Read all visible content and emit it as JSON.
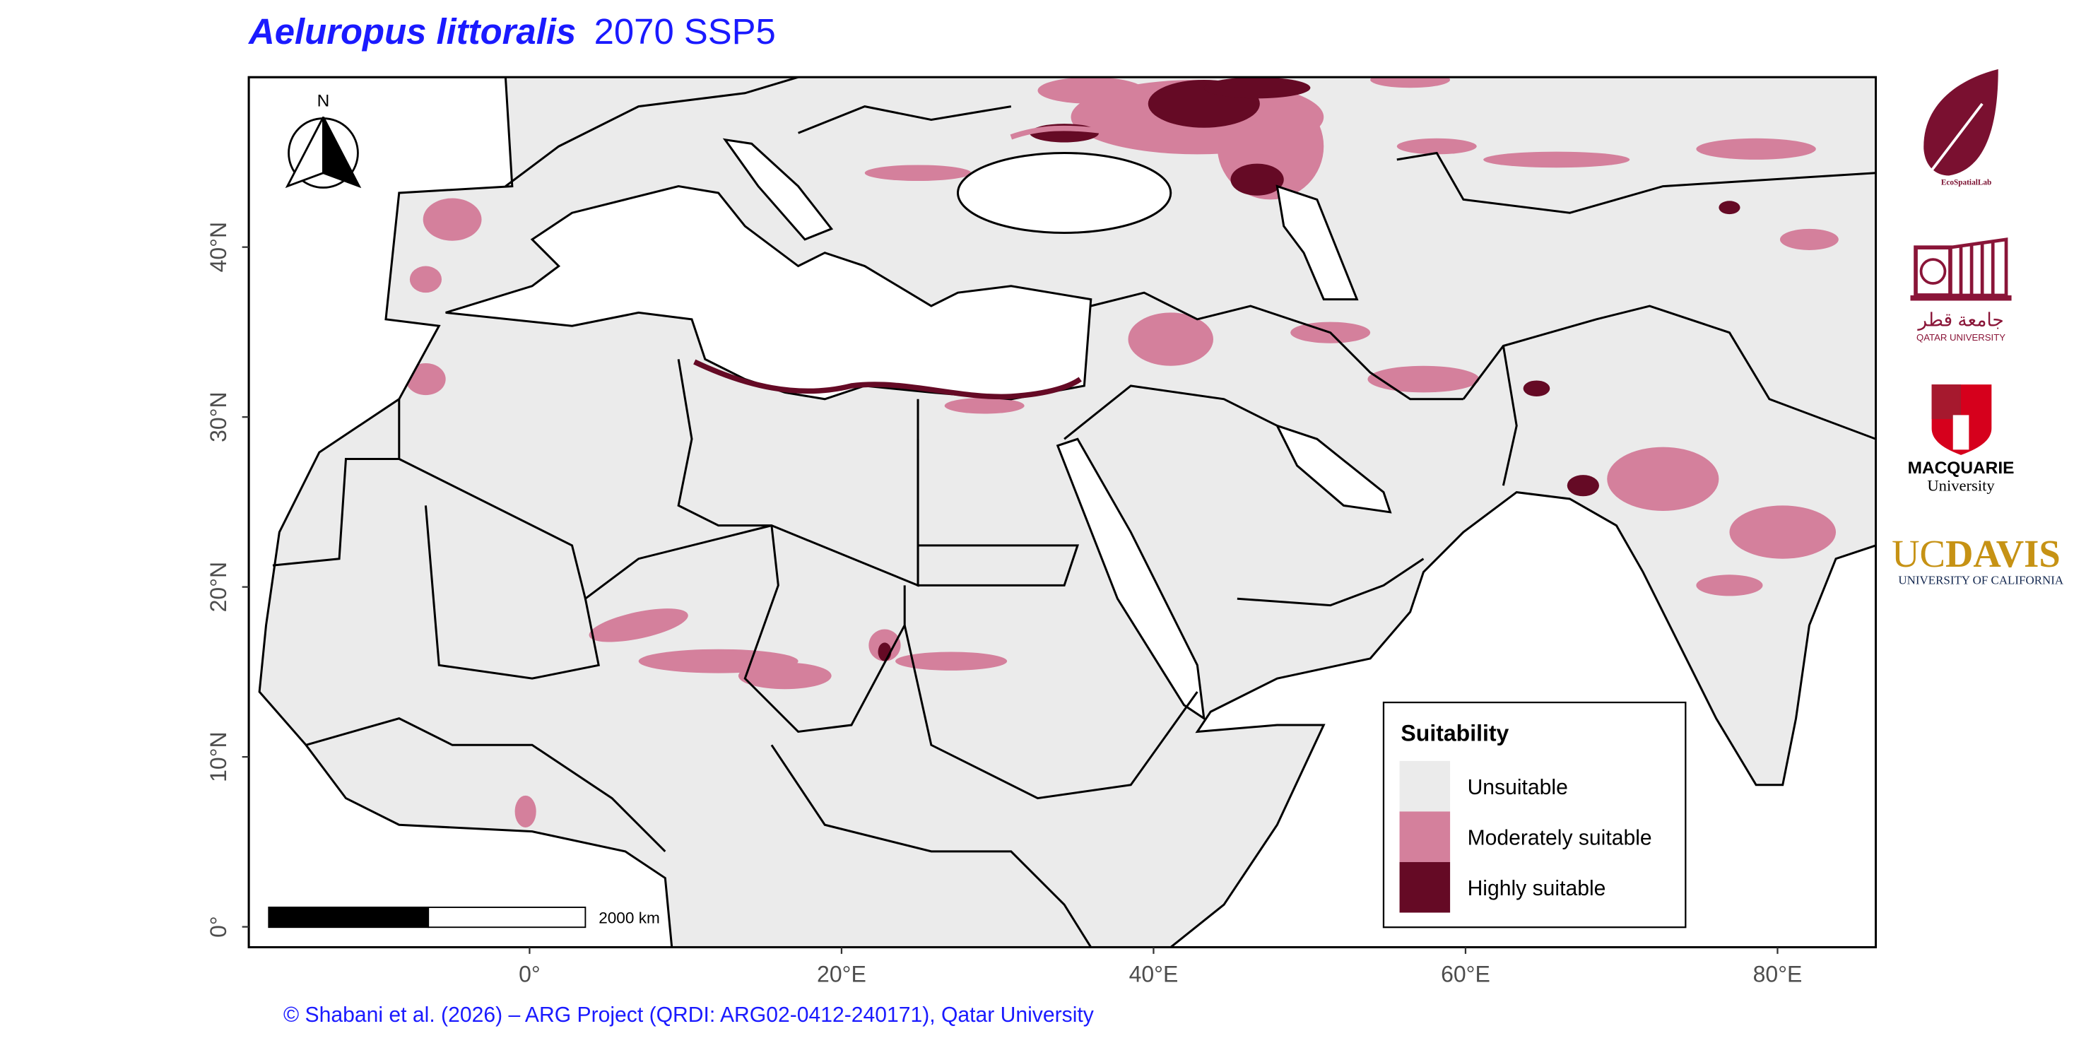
{
  "title": {
    "species": "Aeluropus littoralis",
    "scenario": "2070 SSP5"
  },
  "map": {
    "extent": {
      "xlim": [
        -18,
        86.3
      ],
      "ylim": [
        -1.2,
        50
      ]
    },
    "lon_ticks": [
      {
        "value": 0,
        "label": "0°"
      },
      {
        "value": 20,
        "label": "20°E"
      },
      {
        "value": 40,
        "label": "40°E"
      },
      {
        "value": 60,
        "label": "60°E"
      },
      {
        "value": 80,
        "label": "80°E"
      }
    ],
    "lat_ticks": [
      {
        "value": 0,
        "label": "0°"
      },
      {
        "value": 10,
        "label": "10°N"
      },
      {
        "value": 20,
        "label": "20°N"
      },
      {
        "value": 30,
        "label": "30°N"
      },
      {
        "value": 40,
        "label": "40°N"
      }
    ],
    "north_label": "N",
    "scale_bar": "2000 km"
  },
  "legend": {
    "title": "Suitability",
    "items": [
      {
        "label": "Unsuitable",
        "color": "#ebebeb"
      },
      {
        "label": "Moderately suitable",
        "color": "#d4809c"
      },
      {
        "label": "Highly suitable",
        "color": "#650a25"
      }
    ]
  },
  "logos": {
    "ecospatial": "EcoSpatialLab",
    "qatar_ar": "جامعة قطر",
    "qatar_en": "QATAR UNIVERSITY",
    "macquarie": "MACQUARIE",
    "macquarie_sub": "University",
    "ucdavis_uc": "UC",
    "ucdavis_davis": "DAVIS",
    "ucdavis_sub": "UNIVERSITY OF CALIFORNIA"
  },
  "footer": "© Shabani et al. (2026) – ARG Project (QRDI: ARG02-0412-240171), Qatar University"
}
